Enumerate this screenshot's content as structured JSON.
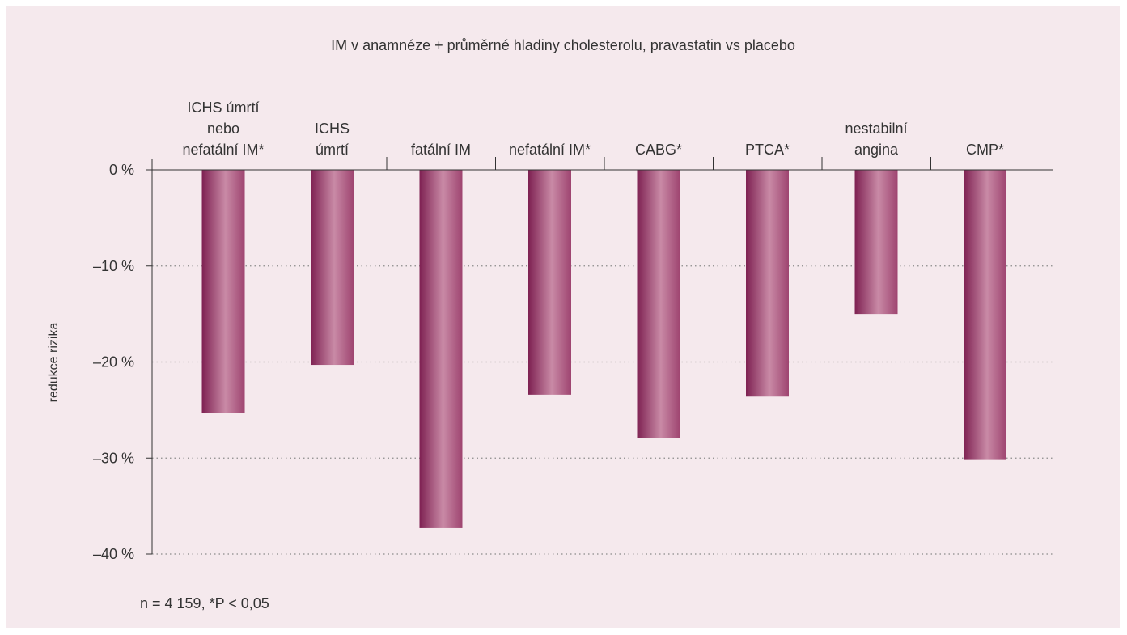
{
  "chart_data": {
    "type": "bar",
    "title": "IM v anamnéze + průměrné hladiny cholesterolu, pravastatin vs placebo",
    "ylabel": "redukce rizika",
    "xlabel": "",
    "categories": [
      [
        "ICHS úmrtí",
        "nebo",
        "nefatální IM*"
      ],
      [
        "ICHS",
        "úmrtí"
      ],
      [
        "fatální IM"
      ],
      [
        "nefatální IM*"
      ],
      [
        "CABG*"
      ],
      [
        "PTCA*"
      ],
      [
        "nestabilní",
        "angina"
      ],
      [
        "CMP*"
      ]
    ],
    "values": [
      -25.3,
      -20.3,
      -37.3,
      -23.4,
      -27.9,
      -23.6,
      -15.0,
      -30.2
    ],
    "ylim": [
      -40,
      0
    ],
    "yticks": [
      0,
      -10,
      -20,
      -30,
      -40
    ],
    "ytick_labels": [
      "0 %",
      "–10 %",
      "–20 %",
      "–30 %",
      "–40 %"
    ],
    "grid": "dotted horizontal",
    "note": "n = 4 159, *P < 0,05",
    "colors": {
      "background": "#f5e9ed",
      "bar_dark": "#8c2a5c",
      "bar_light": "#c98aa6",
      "axis": "#333333",
      "grid": "#8a8a8a"
    }
  }
}
